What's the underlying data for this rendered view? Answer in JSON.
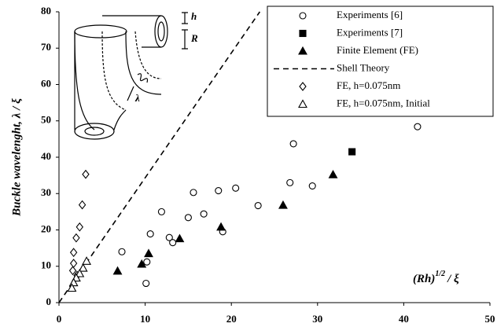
{
  "chart_data": {
    "type": "scatter",
    "y_label": "Buckle wavelenght,  λ / ξ",
    "x_label": {
      "base": "(Rh)",
      "sup": "1/2",
      "rest": "/ ξ"
    },
    "inset_labels": {
      "h": "h",
      "R": "R",
      "lambda": "λ"
    },
    "xlim": [
      0,
      50
    ],
    "ylim": [
      0,
      80
    ],
    "xticks": [
      0,
      10,
      20,
      30,
      40,
      50
    ],
    "yticks": [
      0,
      10,
      20,
      30,
      40,
      50,
      60,
      70,
      80
    ],
    "grid": false,
    "legend": "upper right",
    "series": [
      {
        "name": "Experiments [6]",
        "marker": "circle",
        "filled": false,
        "color": "#000000",
        "x": [
          7.3,
          10.2,
          10.1,
          10.6,
          11.9,
          12.8,
          13.2,
          15.0,
          15.6,
          16.8,
          18.5,
          19.0,
          20.5,
          23.1,
          26.8,
          27.2,
          29.4,
          41.6
        ],
        "y": [
          14.0,
          11.2,
          5.3,
          18.9,
          25.0,
          17.9,
          16.5,
          23.4,
          30.3,
          24.4,
          30.8,
          19.5,
          31.5,
          26.7,
          33.0,
          43.7,
          32.1,
          48.4
        ]
      },
      {
        "name": "Experiments [7]",
        "marker": "square",
        "filled": true,
        "color": "#000000",
        "x": [
          34.0
        ],
        "y": [
          41.5
        ]
      },
      {
        "name": "Finite Element (FE)",
        "marker": "triangle",
        "filled": true,
        "color": "#000000",
        "x": [
          6.8,
          9.6,
          10.4,
          14.0,
          18.8,
          26.0,
          31.8
        ],
        "y": [
          8.7,
          10.6,
          13.5,
          17.6,
          20.8,
          26.8,
          35.2
        ]
      },
      {
        "name": "Shell Theory",
        "marker": "dashed-line",
        "color": "#000000",
        "x": [
          0,
          23.3
        ],
        "y": [
          0,
          80
        ]
      },
      {
        "name": "FE, h=0.075nm",
        "marker": "diamond",
        "filled": false,
        "color": "#000000",
        "x": [
          3.1,
          2.7,
          2.4,
          2.0,
          1.7,
          1.7,
          1.6,
          2.1
        ],
        "y": [
          35.3,
          26.9,
          20.8,
          17.8,
          13.8,
          10.8,
          8.8,
          7.5
        ]
      },
      {
        "name": "FE, h=0.075nm, Initial",
        "marker": "triangle",
        "filled": false,
        "color": "#000000",
        "x": [
          3.2,
          2.8,
          2.4,
          2.0,
          1.7,
          1.5
        ],
        "y": [
          11.4,
          9.5,
          8.0,
          6.8,
          5.5,
          4.0
        ]
      }
    ]
  }
}
